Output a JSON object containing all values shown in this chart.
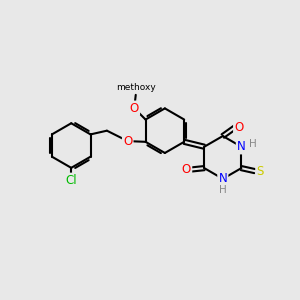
{
  "bg_color": "#e8e8e8",
  "bond_color": "#000000",
  "bond_width": 1.5,
  "dbo": 0.08,
  "atom_colors": {
    "O": "#ff0000",
    "N": "#0000ff",
    "S": "#cccc00",
    "Cl": "#00bb00",
    "H": "#888888",
    "C": "#000000"
  },
  "font_size": 8.5,
  "fig_width": 3.0,
  "fig_height": 3.0,
  "dpi": 100
}
